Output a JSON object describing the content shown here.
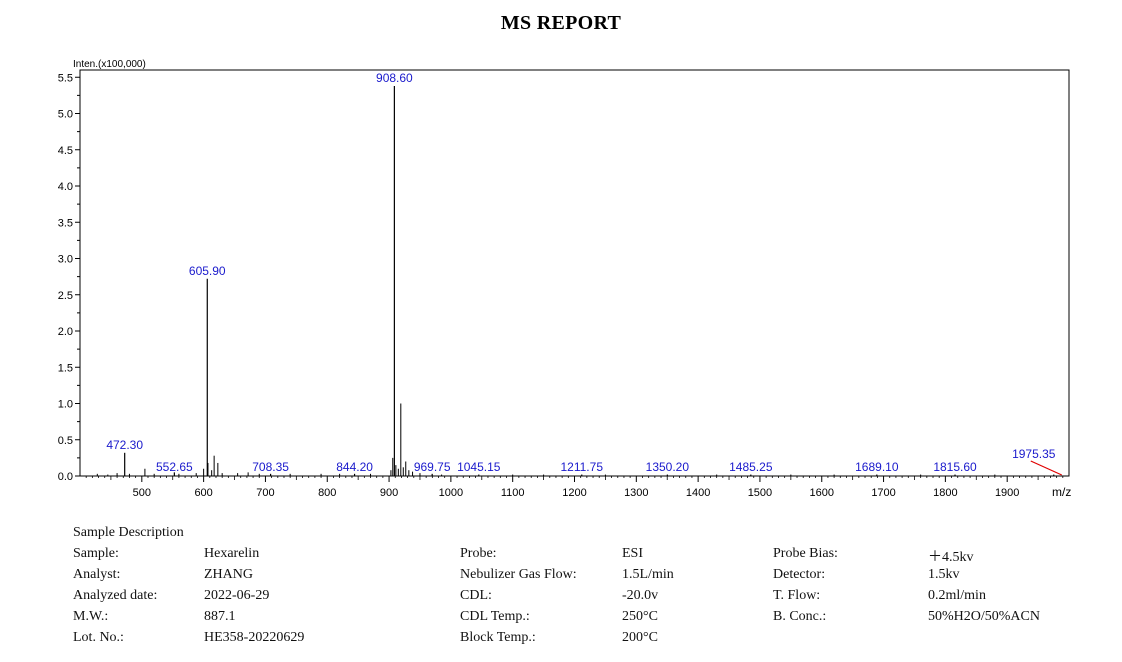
{
  "title": "MS REPORT",
  "chart_data": {
    "type": "bar",
    "ylabel": "Inten.(x100,000)",
    "xlabel": "m/z",
    "xlim": [
      400,
      2000
    ],
    "ylim": [
      0,
      5.6
    ],
    "x_ticks": [
      500,
      600,
      700,
      800,
      900,
      1000,
      1100,
      1200,
      1300,
      1400,
      1500,
      1600,
      1700,
      1800,
      1900
    ],
    "y_ticks": [
      0.0,
      0.5,
      1.0,
      1.5,
      2.0,
      2.5,
      3.0,
      3.5,
      4.0,
      4.5,
      5.0,
      5.5
    ],
    "labeled_peaks": [
      {
        "mz": 472.3,
        "intensity": 0.32,
        "label": "472.30"
      },
      {
        "mz": 552.65,
        "intensity": 0.05,
        "label": "552.65"
      },
      {
        "mz": 605.9,
        "intensity": 2.72,
        "label": "605.90"
      },
      {
        "mz": 708.35,
        "intensity": 0.03,
        "label": "708.35"
      },
      {
        "mz": 844.2,
        "intensity": 0.03,
        "label": "844.20"
      },
      {
        "mz": 908.6,
        "intensity": 5.38,
        "label": "908.60"
      },
      {
        "mz": 969.75,
        "intensity": 0.03,
        "label": "969.75"
      },
      {
        "mz": 1045.15,
        "intensity": 0.02,
        "label": "1045.15"
      },
      {
        "mz": 1211.75,
        "intensity": 0.02,
        "label": "1211.75"
      },
      {
        "mz": 1350.2,
        "intensity": 0.02,
        "label": "1350.20"
      },
      {
        "mz": 1485.25,
        "intensity": 0.02,
        "label": "1485.25"
      },
      {
        "mz": 1689.1,
        "intensity": 0.02,
        "label": "1689.10"
      },
      {
        "mz": 1815.6,
        "intensity": 0.02,
        "label": "1815.60"
      },
      {
        "mz": 1975.35,
        "intensity": 0.02,
        "label": "1975.35"
      }
    ],
    "minor_peaks": [
      {
        "mz": 428,
        "intensity": 0.03
      },
      {
        "mz": 445,
        "intensity": 0.02
      },
      {
        "mz": 460,
        "intensity": 0.04
      },
      {
        "mz": 480,
        "intensity": 0.03
      },
      {
        "mz": 505,
        "intensity": 0.1
      },
      {
        "mz": 520,
        "intensity": 0.03
      },
      {
        "mz": 560,
        "intensity": 0.03
      },
      {
        "mz": 588,
        "intensity": 0.04
      },
      {
        "mz": 600,
        "intensity": 0.1
      },
      {
        "mz": 607,
        "intensity": 0.18
      },
      {
        "mz": 613,
        "intensity": 0.08
      },
      {
        "mz": 617,
        "intensity": 0.28
      },
      {
        "mz": 623,
        "intensity": 0.18
      },
      {
        "mz": 630,
        "intensity": 0.04
      },
      {
        "mz": 655,
        "intensity": 0.04
      },
      {
        "mz": 672,
        "intensity": 0.05
      },
      {
        "mz": 690,
        "intensity": 0.03
      },
      {
        "mz": 740,
        "intensity": 0.03
      },
      {
        "mz": 790,
        "intensity": 0.03
      },
      {
        "mz": 820,
        "intensity": 0.03
      },
      {
        "mz": 870,
        "intensity": 0.03
      },
      {
        "mz": 903,
        "intensity": 0.08
      },
      {
        "mz": 906,
        "intensity": 0.25
      },
      {
        "mz": 911,
        "intensity": 0.15
      },
      {
        "mz": 915,
        "intensity": 0.1
      },
      {
        "mz": 919,
        "intensity": 1.0
      },
      {
        "mz": 923,
        "intensity": 0.12
      },
      {
        "mz": 927,
        "intensity": 0.2
      },
      {
        "mz": 932,
        "intensity": 0.08
      },
      {
        "mz": 938,
        "intensity": 0.06
      },
      {
        "mz": 950,
        "intensity": 0.04
      },
      {
        "mz": 985,
        "intensity": 0.02
      },
      {
        "mz": 1100,
        "intensity": 0.02
      },
      {
        "mz": 1150,
        "intensity": 0.02
      },
      {
        "mz": 1250,
        "intensity": 0.02
      },
      {
        "mz": 1430,
        "intensity": 0.02
      },
      {
        "mz": 1550,
        "intensity": 0.02
      },
      {
        "mz": 1620,
        "intensity": 0.02
      },
      {
        "mz": 1760,
        "intensity": 0.02
      },
      {
        "mz": 1880,
        "intensity": 0.02
      }
    ],
    "colors": {
      "axis": "#000000",
      "peak": "#000000",
      "label": "#1a1acc",
      "marker": "#e00000"
    }
  },
  "sample_info": {
    "heading": "Sample Description",
    "col1": [
      {
        "label": "Sample:",
        "value": "Hexarelin"
      },
      {
        "label": "Analyst:",
        "value": "ZHANG"
      },
      {
        "label": "Analyzed date:",
        "value": "2022-06-29"
      },
      {
        "label": "M.W.:",
        "value": "887.1"
      },
      {
        "label": "Lot. No.:",
        "value": "HE358-20220629"
      }
    ],
    "col2": [
      {
        "label": "Probe:",
        "value": "ESI"
      },
      {
        "label": "Nebulizer Gas Flow:",
        "value": "1.5L/min"
      },
      {
        "label": "CDL:",
        "value": "-20.0v"
      },
      {
        "label": "CDL Temp.:",
        "value": "250°C"
      },
      {
        "label": "Block Temp.:",
        "value": "200°C"
      }
    ],
    "col3": [
      {
        "label": "Probe Bias:",
        "value": "＋4.5kv"
      },
      {
        "label": "Detector:",
        "value": "1.5kv"
      },
      {
        "label": "T. Flow:",
        "value": "0.2ml/min"
      },
      {
        "label": "B. Conc.:",
        "value": "50%H2O/50%ACN"
      }
    ]
  }
}
